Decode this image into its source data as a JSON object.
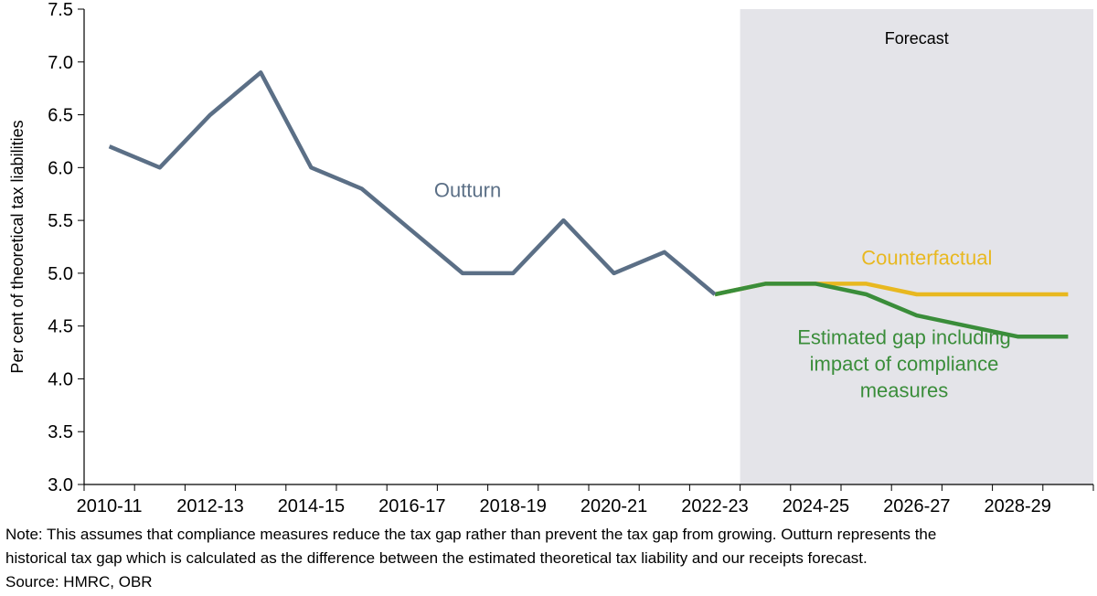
{
  "chart_data": {
    "type": "line",
    "title": "",
    "ylabel": "Per cent of theoretical tax liabilities",
    "ylim": [
      3.0,
      7.5
    ],
    "yticks": [
      "3.0",
      "3.5",
      "4.0",
      "4.5",
      "5.0",
      "5.5",
      "6.0",
      "6.5",
      "7.0",
      "7.5"
    ],
    "x_ticks": [
      "2010-11",
      "2012-13",
      "2014-15",
      "2016-17",
      "2018-19",
      "2020-21",
      "2022-23",
      "2024-25",
      "2026-27",
      "2028-29"
    ],
    "x_tick_indices": [
      0,
      2,
      4,
      6,
      8,
      10,
      12,
      14,
      16,
      18
    ],
    "x_count": 20,
    "forecast_start_index": 13,
    "forecast_label": "Forecast",
    "series": [
      {
        "name": "Outturn",
        "label_lines": [
          "Outturn"
        ],
        "label_anchor": [
          7.1,
          5.72
        ],
        "label_align": "middle",
        "color": "#5b6f86",
        "start_index": 0,
        "values": [
          6.2,
          6.0,
          6.5,
          6.9,
          6.0,
          5.8,
          5.4,
          5.0,
          5.0,
          5.5,
          5.0,
          5.2,
          4.8
        ]
      },
      {
        "name": "Counterfactual",
        "label_lines": [
          "Counterfactual"
        ],
        "label_anchor": [
          16.2,
          5.08
        ],
        "label_align": "middle",
        "color": "#e8b820",
        "start_index": 12,
        "values": [
          4.8,
          4.9,
          4.9,
          4.9,
          4.8,
          4.8,
          4.8,
          4.8
        ]
      },
      {
        "name": "Estimated gap including impact of compliance measures",
        "label_lines": [
          "Estimated gap including",
          "impact of compliance",
          "measures"
        ],
        "label_anchor": [
          15.75,
          4.33
        ],
        "label_align": "middle",
        "color": "#3a8d3a",
        "start_index": 12,
        "values": [
          4.8,
          4.9,
          4.9,
          4.8,
          4.6,
          4.5,
          4.4,
          4.4
        ]
      }
    ]
  },
  "notes": {
    "note_line1": "Note: This assumes that compliance measures reduce the tax gap rather than prevent the tax gap from growing. Outturn represents the",
    "note_line2": "historical tax gap which is calculated as the difference between the estimated theoretical tax liability and our receipts forecast.",
    "source": "Source: HMRC, OBR"
  }
}
